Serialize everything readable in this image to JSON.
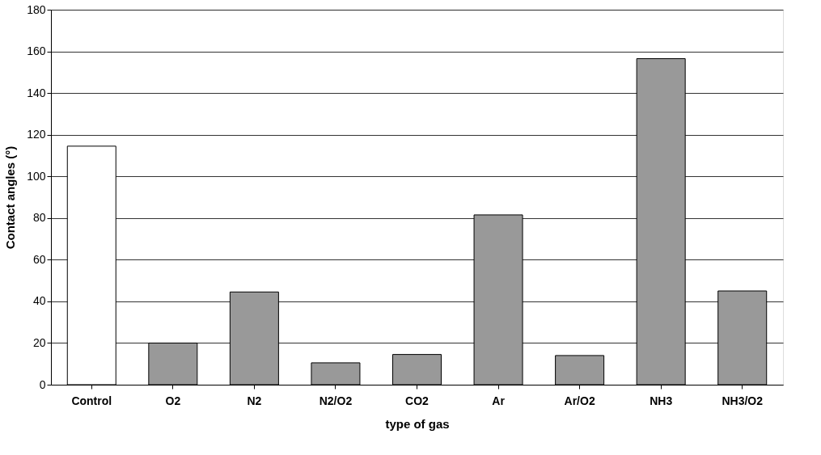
{
  "chart_data": {
    "type": "bar",
    "xlabel": "type of gas",
    "ylabel": "Contact angles (°)",
    "categories": [
      "Control",
      "O2",
      "N2",
      "N2/O2",
      "CO2",
      "Ar",
      "Ar/O2",
      "NH3",
      "NH3/O2"
    ],
    "values": [
      114.5,
      20,
      44.5,
      10.5,
      14.5,
      81.5,
      14,
      156.5,
      45
    ],
    "colors": [
      "#ffffff",
      "#999999",
      "#999999",
      "#999999",
      "#999999",
      "#999999",
      "#999999",
      "#999999",
      "#999999"
    ],
    "ylim": [
      0,
      180
    ],
    "yticks": [
      0,
      20,
      40,
      60,
      80,
      100,
      120,
      140,
      160,
      180
    ],
    "grid": "y"
  }
}
